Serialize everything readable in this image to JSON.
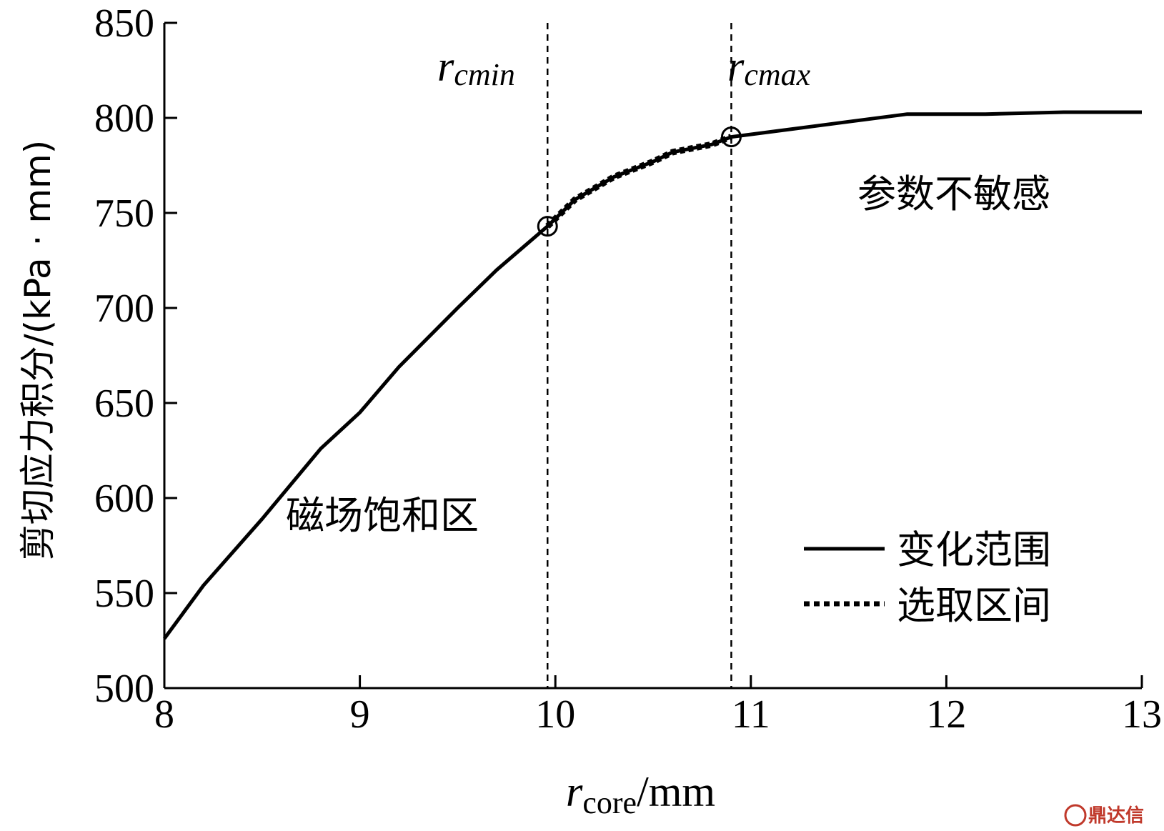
{
  "chart_data": {
    "type": "line",
    "title": "",
    "xlabel_var": "r",
    "xlabel_sub": "core",
    "xlabel_unit": "/mm",
    "ylabel": "剪切应力积分/(kPa · mm)",
    "xlim": [
      8,
      13
    ],
    "ylim": [
      500,
      850
    ],
    "xticks": [
      8,
      9,
      10,
      11,
      12,
      13
    ],
    "yticks": [
      500,
      550,
      600,
      650,
      700,
      750,
      800,
      850
    ],
    "series": [
      {
        "name": "变化范围",
        "style": "solid",
        "x": [
          8.0,
          8.2,
          8.5,
          8.8,
          9.0,
          9.2,
          9.5,
          9.7,
          9.96,
          10.1,
          10.3,
          10.5,
          10.6,
          10.8,
          10.9,
          11.2,
          11.5,
          11.8,
          12.2,
          12.6,
          13.0
        ],
        "y": [
          526,
          554,
          589,
          626,
          645,
          669,
          700,
          720,
          743,
          757,
          769,
          777,
          782,
          786,
          790,
          794,
          798,
          802,
          802,
          803,
          803
        ]
      },
      {
        "name": "选取区间",
        "style": "dotted",
        "x": [
          9.96,
          10.1,
          10.3,
          10.5,
          10.6,
          10.8,
          10.9
        ],
        "y": [
          743,
          757,
          769,
          777,
          782,
          786,
          790
        ]
      }
    ],
    "vlines": [
      {
        "x": 9.96,
        "label_var": "r",
        "label_sub": "cmin"
      },
      {
        "x": 10.9,
        "label_var": "r",
        "label_sub": "cmax"
      }
    ],
    "markers": [
      {
        "x": 9.96,
        "y": 743
      },
      {
        "x": 10.9,
        "y": 790
      }
    ],
    "annotations": {
      "left_region": "磁场饱和区",
      "right_region": "参数不敏感"
    },
    "legend": {
      "placement": "bottom-right",
      "entries": [
        "变化范围",
        "选取区间"
      ]
    },
    "grid": false
  },
  "watermark": "鼎达信",
  "colors": {
    "line": "#000000",
    "watermark": "#c0392b"
  }
}
